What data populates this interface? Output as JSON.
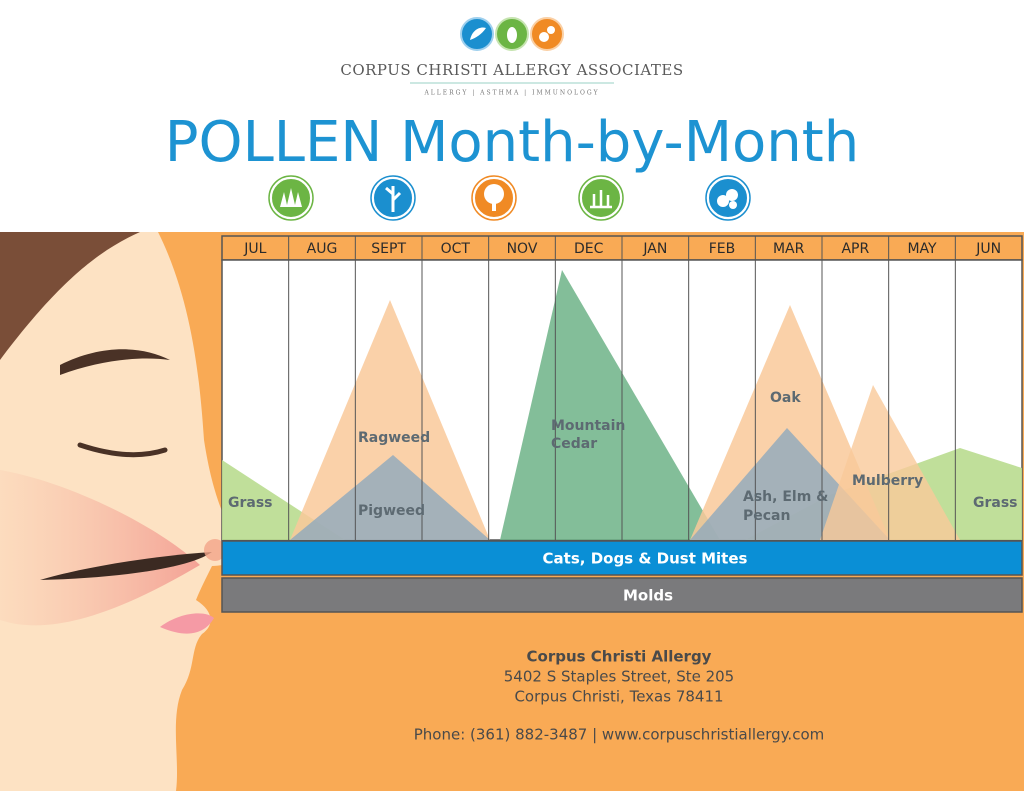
{
  "logo": {
    "name": "CORPUS CHRISTI ALLERGY ASSOCIATES",
    "tagline": "ALLERGY | ASTHMA | IMMUNOLOGY"
  },
  "title": "POLLEN Month-by-Month",
  "months": [
    "JUL",
    "AUG",
    "SEPT",
    "OCT",
    "NOV",
    "DEC",
    "JAN",
    "FEB",
    "MAR",
    "APR",
    "MAY",
    "JUN"
  ],
  "labels": [
    "Grass",
    "Ragweed",
    "Pigweed",
    [
      "Mountain",
      "Cedar"
    ],
    "Oak",
    [
      "Ash, Elm &",
      "Pecan"
    ],
    "Mulberry",
    "Grass"
  ],
  "bands": [
    "Cats, Dogs & Dust Mites",
    "Molds"
  ],
  "contact": {
    "name": "Corpus Christi Allergy",
    "address": "5402 S Staples Street, Ste 205",
    "city": "Corpus Christi, Texas 78411",
    "phone": "Phone: (361) 882-3487 | www.corpuschristiallergy.com"
  }
}
